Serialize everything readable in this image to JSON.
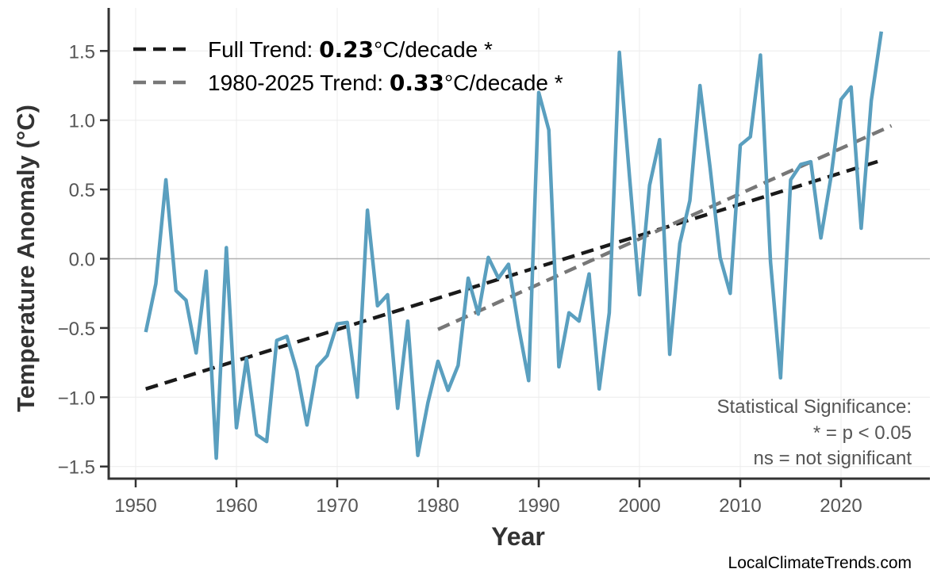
{
  "chart_data": {
    "type": "line",
    "title": "",
    "xlabel": "Year",
    "ylabel": "Temperature Anomaly (°C)",
    "xlim": [
      1947.5,
      2028.8
    ],
    "ylim": [
      -1.59,
      1.78
    ],
    "xticks": [
      1950,
      1960,
      1970,
      1980,
      1990,
      2000,
      2010,
      2020
    ],
    "yticks": [
      -1.5,
      -1.0,
      -0.5,
      0.0,
      0.5,
      1.0,
      1.5
    ],
    "ytick_labels": [
      "−1.5",
      "−1.0",
      "−0.5",
      "0.0",
      "0.5",
      "1.0",
      "1.5"
    ],
    "grid": true,
    "zero_line": true,
    "x": [
      1951,
      1952,
      1953,
      1954,
      1955,
      1956,
      1957,
      1958,
      1959,
      1960,
      1961,
      1962,
      1963,
      1964,
      1965,
      1966,
      1967,
      1968,
      1969,
      1970,
      1971,
      1972,
      1973,
      1974,
      1975,
      1976,
      1977,
      1978,
      1979,
      1980,
      1981,
      1982,
      1983,
      1984,
      1985,
      1986,
      1987,
      1988,
      1989,
      1990,
      1991,
      1992,
      1993,
      1994,
      1995,
      1996,
      1997,
      1998,
      1999,
      2000,
      2001,
      2002,
      2003,
      2004,
      2005,
      2006,
      2007,
      2008,
      2009,
      2010,
      2011,
      2012,
      2013,
      2014,
      2015,
      2016,
      2017,
      2018,
      2019,
      2020,
      2021,
      2022,
      2023,
      2024
    ],
    "series": [
      {
        "color": "#5a9fbf",
        "values": [
          -0.53,
          -0.18,
          0.57,
          -0.23,
          -0.3,
          -0.68,
          -0.09,
          -1.44,
          0.08,
          -1.22,
          -0.72,
          -1.27,
          -1.32,
          -0.59,
          -0.56,
          -0.81,
          -1.2,
          -0.78,
          -0.7,
          -0.47,
          -0.46,
          -1.0,
          0.35,
          -0.34,
          -0.26,
          -1.08,
          -0.45,
          -1.42,
          -1.04,
          -0.74,
          -0.95,
          -0.77,
          -0.14,
          -0.4,
          0.01,
          -0.14,
          -0.04,
          -0.49,
          -0.88,
          1.2,
          0.93,
          -0.78,
          -0.39,
          -0.45,
          -0.11,
          -0.94,
          -0.39,
          1.49,
          0.6,
          -0.26,
          0.53,
          0.86,
          -0.69,
          0.11,
          0.42,
          1.25,
          0.66,
          0.01,
          -0.25,
          0.82,
          0.88,
          1.47,
          -0.02,
          -0.86,
          0.57,
          0.68,
          0.7,
          0.15,
          0.59,
          1.15,
          1.24,
          0.22,
          1.14,
          1.64
        ]
      }
    ],
    "trend_lines": [
      {
        "name_prefix": "Full Trend: ",
        "value": "0.23",
        "unit_suffix": "°C/decade *",
        "color": "#1a1a1a",
        "x": [
          1951,
          2024
        ],
        "y": [
          -0.94,
          0.71
        ]
      },
      {
        "name_prefix": "1980-2025 Trend: ",
        "value": "0.33",
        "unit_suffix": "°C/decade *",
        "color": "#777777",
        "x": [
          1980,
          2025
        ],
        "y": [
          -0.51,
          0.96
        ]
      }
    ],
    "legend_position": "top-left",
    "annotation": [
      "Statistical Significance:",
      "* = p < 0.05",
      "ns = not significant"
    ],
    "credit": "LocalClimateTrends.com"
  }
}
